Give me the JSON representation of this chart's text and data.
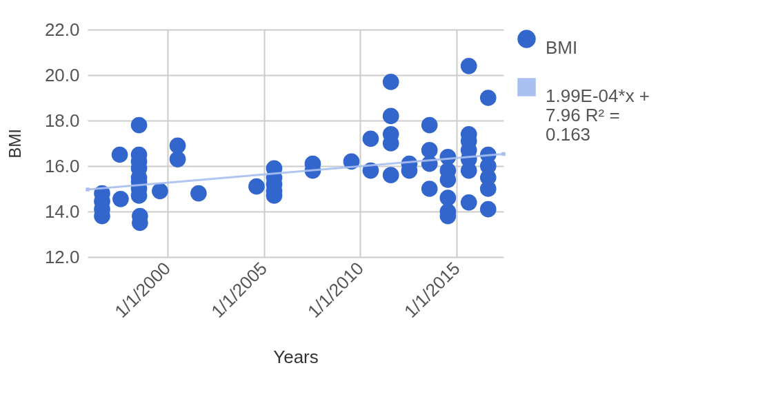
{
  "chart_data": {
    "type": "scatter",
    "xlabel": "Years",
    "ylabel": "BMI",
    "xlim": [
      "1995-11-15",
      "2017-06-01"
    ],
    "ylim": [
      12,
      22
    ],
    "xticks": [
      {
        "value": "2000-01-01",
        "label": "1/1/2000"
      },
      {
        "value": "2005-01-01",
        "label": "1/1/2005"
      },
      {
        "value": "2010-01-01",
        "label": "1/1/2010"
      },
      {
        "value": "2015-01-01",
        "label": "1/1/2015"
      }
    ],
    "yticks": [
      {
        "value": 12,
        "label": "12.0"
      },
      {
        "value": 14,
        "label": "14.0"
      },
      {
        "value": 16,
        "label": "16.0"
      },
      {
        "value": 18,
        "label": "18.0"
      },
      {
        "value": 20,
        "label": "20.0"
      },
      {
        "value": 22,
        "label": "22.0"
      }
    ],
    "grid": true,
    "legend": "right",
    "series": [
      {
        "name": "BMI",
        "color": "#3366cc",
        "marker": "circle",
        "x": [
          "1996-08-15",
          "1996-08-15",
          "1996-08-15",
          "1996-08-15",
          "1997-07-15",
          "1997-08-01",
          "1998-07-15",
          "1998-07-15",
          "1998-07-15",
          "1998-07-15",
          "1998-07-15",
          "1998-07-15",
          "1998-07-15",
          "1998-07-15",
          "1998-08-01",
          "1998-08-01",
          "1999-08-15",
          "2000-07-15",
          "2000-07-15",
          "2001-08-15",
          "2004-08-15",
          "2005-07-15",
          "2005-07-15",
          "2005-07-15",
          "2005-07-15",
          "2005-07-15",
          "2007-07-15",
          "2007-07-15",
          "2009-07-15",
          "2010-07-15",
          "2010-07-15",
          "2011-08-01",
          "2011-08-01",
          "2011-08-01",
          "2011-08-01",
          "2011-08-01",
          "2012-07-15",
          "2012-07-15",
          "2013-08-01",
          "2013-08-01",
          "2013-08-01",
          "2013-08-01",
          "2014-07-15",
          "2014-07-15",
          "2014-07-15",
          "2014-07-15",
          "2014-07-15",
          "2014-07-15",
          "2015-08-15",
          "2015-08-15",
          "2015-08-15",
          "2015-08-15",
          "2015-08-15",
          "2015-08-15",
          "2015-08-15",
          "2016-08-15",
          "2016-08-15",
          "2016-08-15",
          "2016-08-15",
          "2016-08-15",
          "2016-08-15"
        ],
        "values": [
          14.8,
          14.45,
          14.1,
          13.8,
          16.5,
          14.55,
          17.8,
          16.5,
          16.2,
          15.9,
          15.5,
          15.3,
          15.0,
          14.7,
          13.8,
          13.5,
          14.9,
          16.9,
          16.3,
          14.8,
          15.1,
          15.9,
          15.5,
          15.2,
          14.9,
          14.7,
          16.1,
          15.8,
          16.2,
          17.2,
          15.8,
          19.7,
          18.2,
          17.4,
          17.0,
          15.6,
          16.1,
          15.8,
          17.8,
          16.7,
          16.1,
          15.0,
          16.4,
          15.8,
          15.4,
          14.6,
          14.0,
          13.8,
          20.4,
          17.4,
          17.1,
          16.7,
          16.3,
          15.8,
          14.4,
          19.0,
          16.5,
          16.0,
          15.5,
          15.0,
          14.1
        ]
      },
      {
        "name": "1.99E-04*x + 7.96 R² = 0.163",
        "type": "line",
        "color": "#a8bff0",
        "marker": "square",
        "x": [
          "1995-11-15",
          "2017-06-01"
        ],
        "values": [
          14.97,
          16.53
        ]
      }
    ]
  }
}
